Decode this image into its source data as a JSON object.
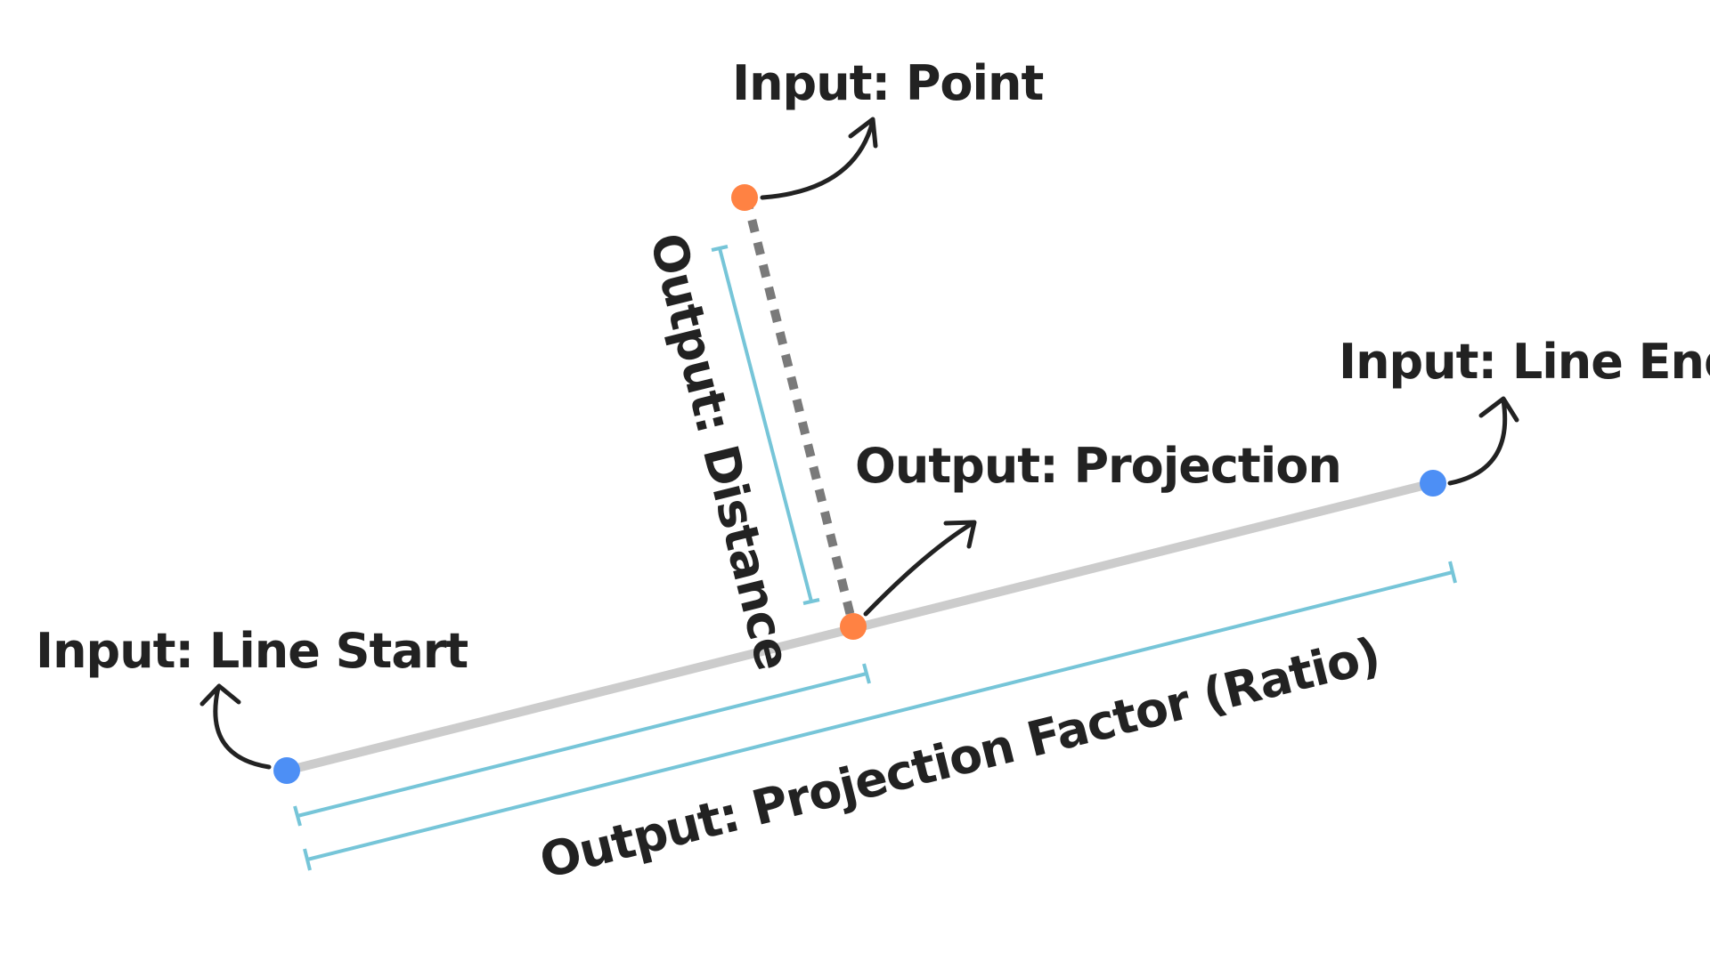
{
  "labels": {
    "point": "Input: Point",
    "line_end": "Input: Line End",
    "line_start": "Input: Line Start",
    "projection": "Output: Projection",
    "distance": "Output: Distance",
    "factor": "Output: Projection Factor (Ratio)"
  },
  "colors": {
    "input_point": "#ff8243",
    "line_endpoint": "#4d8ff5",
    "main_line": "#cccccc",
    "distance_line": "#7a7a7a",
    "dimension": "#76c5d8",
    "text": "#222222"
  }
}
